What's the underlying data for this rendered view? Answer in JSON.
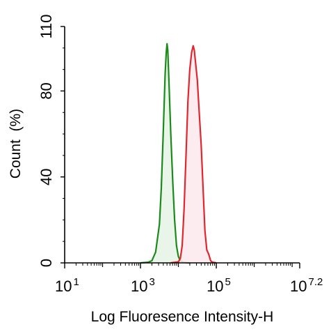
{
  "chart_data": {
    "type": "area",
    "title": "",
    "xlabel": "Log Fluoresence Intensity-H",
    "ylabel": "Count  (%)",
    "xscale": "log10",
    "xlim_log10": [
      1,
      7.2
    ],
    "ylim": [
      0,
      110
    ],
    "x_ticks": [
      {
        "base": "10",
        "exp": "1",
        "log10": 1
      },
      {
        "base": "10",
        "exp": "3",
        "log10": 3
      },
      {
        "base": "10",
        "exp": "5",
        "log10": 5
      },
      {
        "base": "10",
        "exp": "7.2",
        "log10": 7.2
      }
    ],
    "y_ticks": [
      "0",
      "40",
      "80",
      "110"
    ],
    "grid": false,
    "legend": "none",
    "series": [
      {
        "color": "#1a8a1a",
        "fill": "#e6f3e6",
        "points": [
          [
            3.0,
            0
          ],
          [
            3.2,
            0.3
          ],
          [
            3.3,
            1
          ],
          [
            3.4,
            5
          ],
          [
            3.5,
            18
          ],
          [
            3.55,
            35
          ],
          [
            3.6,
            60
          ],
          [
            3.65,
            88
          ],
          [
            3.68,
            98
          ],
          [
            3.7,
            102
          ],
          [
            3.72,
            99
          ],
          [
            3.75,
            85
          ],
          [
            3.8,
            60
          ],
          [
            3.85,
            38
          ],
          [
            3.9,
            20
          ],
          [
            3.95,
            8
          ],
          [
            4.0,
            3
          ],
          [
            4.05,
            1
          ],
          [
            4.15,
            0.2
          ],
          [
            4.3,
            0
          ]
        ]
      },
      {
        "color": "#e0262e",
        "fill": "#fce8ec",
        "points": [
          [
            3.8,
            0
          ],
          [
            4.0,
            0.5
          ],
          [
            4.05,
            2
          ],
          [
            4.1,
            8
          ],
          [
            4.15,
            25
          ],
          [
            4.2,
            50
          ],
          [
            4.25,
            75
          ],
          [
            4.3,
            90
          ],
          [
            4.35,
            98
          ],
          [
            4.39,
            101
          ],
          [
            4.42,
            99
          ],
          [
            4.5,
            85
          ],
          [
            4.55,
            70
          ],
          [
            4.6,
            55
          ],
          [
            4.65,
            35
          ],
          [
            4.7,
            15
          ],
          [
            4.75,
            6
          ],
          [
            4.8,
            4
          ],
          [
            4.85,
            1
          ],
          [
            4.9,
            0.3
          ],
          [
            5.0,
            0
          ]
        ]
      }
    ]
  }
}
